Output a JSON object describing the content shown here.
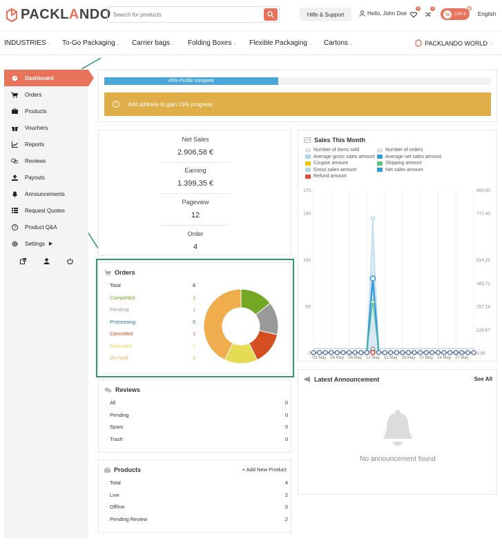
{
  "header": {
    "logo": {
      "pre": "PACKL",
      "o": "A",
      "post": "NDO"
    },
    "search_placeholder": "Search for products",
    "help_label": "Hilfe & Support",
    "user_greeting": "Hello, John Doe",
    "wishlist_count": "0",
    "compare_count": "0",
    "cart_total": "0,00 €",
    "cart_count": "0",
    "language": "English"
  },
  "nav": {
    "items": [
      "INDUSTRIES",
      "To-Go Packaging",
      "Carrier bags",
      "Folding Boxes",
      "Flexible Packaging",
      "Cartons"
    ],
    "world": "PACKLANDO WORLD"
  },
  "sidebar": {
    "items": [
      {
        "label": "Dashboard",
        "icon": "gauge-icon"
      },
      {
        "label": "Orders",
        "icon": "cart-icon"
      },
      {
        "label": "Products",
        "icon": "briefcase-icon"
      },
      {
        "label": "Vouchers",
        "icon": "gift-icon"
      },
      {
        "label": "Reports",
        "icon": "chart-icon"
      },
      {
        "label": "Reviews",
        "icon": "comments-icon"
      },
      {
        "label": "Payouts",
        "icon": "upload-icon"
      },
      {
        "label": "Announcements",
        "icon": "bell-icon"
      },
      {
        "label": "Request Quotes",
        "icon": "list-icon"
      },
      {
        "label": "Product Q&A",
        "icon": "question-icon"
      },
      {
        "label": "Settings",
        "icon": "gear-icon"
      }
    ]
  },
  "profile": {
    "progress_label": "45% Profile complete",
    "progress_value": 45,
    "notice": "Add address  to gain 15% progress"
  },
  "stats": {
    "net_sales_label": "Net Sales",
    "net_sales": "2.906,58 €",
    "earning_label": "Earning",
    "earning": "1.399,35 €",
    "pageview_label": "Pageview",
    "pageview": "12",
    "order_label": "Order",
    "order": "4"
  },
  "orders": {
    "title": "Orders",
    "rows": [
      {
        "label": "Total",
        "value": "8",
        "color": "#333333"
      },
      {
        "label": "Completed",
        "value": "1",
        "color": "#73a724"
      },
      {
        "label": "Pending",
        "value": "1",
        "color": "#999999"
      },
      {
        "label": "Processing",
        "value": "0",
        "color": "#21759b"
      },
      {
        "label": "Cancelled",
        "value": "1",
        "color": "#d54e21"
      },
      {
        "label": "Refunded",
        "value": "1",
        "color": "#e6db55"
      },
      {
        "label": "On hold",
        "value": "3",
        "color": "#f0ad4e"
      }
    ]
  },
  "reviews": {
    "title": "Reviews",
    "rows": [
      {
        "label": "All",
        "value": "0"
      },
      {
        "label": "Pending",
        "value": "0"
      },
      {
        "label": "Spam",
        "value": "0"
      },
      {
        "label": "Trash",
        "value": "0"
      }
    ]
  },
  "products": {
    "title": "Products",
    "add_label": "+ Add New Product",
    "rows": [
      {
        "label": "Total",
        "value": "4"
      },
      {
        "label": "Live",
        "value": "2"
      },
      {
        "label": "Offline",
        "value": "0"
      },
      {
        "label": "Pending Review",
        "value": "2"
      }
    ]
  },
  "sales": {
    "title": "Sales This Month",
    "legend": [
      {
        "label": "Number of items sold",
        "color": "#e5e5e5"
      },
      {
        "label": "Number of orders",
        "color": "#dbe1e3"
      },
      {
        "label": "Average gross sales amount",
        "color": "#b1d4ea"
      },
      {
        "label": "Average net sales amount",
        "color": "#3498db"
      },
      {
        "label": "Coupon amount",
        "color": "#f1c40f"
      },
      {
        "label": "Shipping amount",
        "color": "#5cc488"
      },
      {
        "label": "Gross sales amount",
        "color": "#b1d4ea"
      },
      {
        "label": "Net sales amount",
        "color": "#3498db"
      },
      {
        "label": "Refund amount",
        "color": "#e74c3c"
      }
    ]
  },
  "announcement": {
    "title": "Latest Announcement",
    "see_all": "See All",
    "empty": "No announcement found"
  },
  "chart_data": [
    {
      "type": "pie",
      "title": "",
      "categories": [
        "Completed",
        "Pending",
        "Processing",
        "Cancelled",
        "Refunded",
        "On hold"
      ],
      "values": [
        1,
        1,
        0,
        1,
        1,
        3
      ],
      "colors": [
        "#73a724",
        "#999999",
        "#21759b",
        "#d54e21",
        "#e6db55",
        "#f0ad4e"
      ],
      "legend": "none",
      "donut": true
    },
    {
      "type": "line",
      "title": "Sales This Month",
      "x": [
        "03 May",
        "06 May",
        "09 May",
        "12 May",
        "15 May",
        "18 May",
        "21 May",
        "24 May",
        "27 May"
      ],
      "x_days": [
        1,
        2,
        3,
        4,
        5,
        6,
        7,
        8,
        9,
        10,
        11,
        12,
        13,
        14,
        15,
        16,
        17,
        18,
        19,
        20,
        21,
        22,
        23,
        24,
        25,
        26,
        27,
        28
      ],
      "left_ticks": [
        0,
        50,
        100,
        150,
        175
      ],
      "right_ticks": [
        0.0,
        128.57,
        257.14,
        385.71,
        514.29,
        771.43,
        900.0
      ],
      "ylim_left": [
        0,
        175
      ],
      "ylim_right": [
        0,
        900
      ],
      "peak_day": 11,
      "series": [
        {
          "name": "Gross sales amount",
          "peak": 740,
          "axis": "right"
        },
        {
          "name": "Net sales amount",
          "peak": 410,
          "axis": "right"
        },
        {
          "name": "Shipping amount",
          "peak": 280,
          "axis": "right"
        },
        {
          "name": "Number of orders",
          "peak": 4,
          "axis": "left"
        }
      ],
      "grid": true,
      "legend": "top"
    }
  ]
}
